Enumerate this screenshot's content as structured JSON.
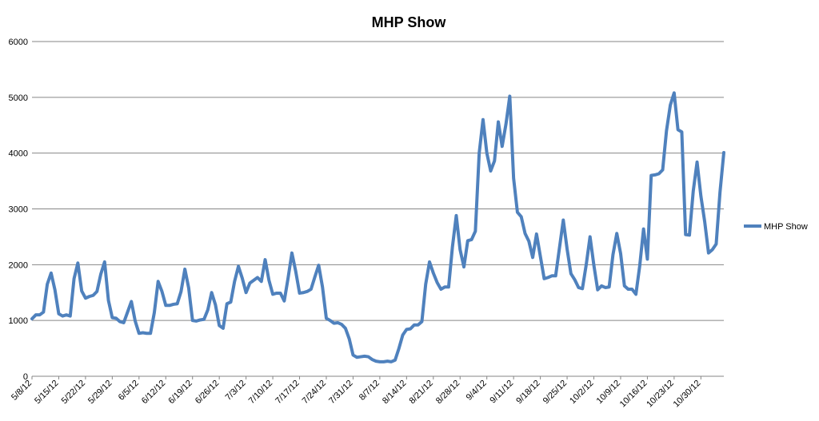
{
  "chart_data": {
    "type": "line",
    "title": "MHP Show",
    "xlabel": "",
    "ylabel": "",
    "ylim": [
      0,
      6000
    ],
    "yticks": [
      0,
      1000,
      2000,
      3000,
      4000,
      5000,
      6000
    ],
    "grid": true,
    "legend_position": "right",
    "xtick_labels": [
      "5/8/12",
      "5/15/12",
      "5/22/12",
      "5/29/12",
      "6/5/12",
      "6/12/12",
      "6/19/12",
      "6/26/12",
      "7/3/12",
      "7/10/12",
      "7/17/12",
      "7/24/12",
      "7/31/12",
      "8/7/12",
      "8/14/12",
      "8/21/12",
      "8/28/12",
      "9/4/12",
      "9/11/12",
      "9/18/12",
      "9/25/12",
      "10/2/12",
      "10/9/12",
      "10/16/12",
      "10/23/12",
      "10/30/12"
    ],
    "xtick_step": 7,
    "series": [
      {
        "name": "MHP Show",
        "color": "#4F81BD",
        "values": [
          1030,
          1100,
          1100,
          1150,
          1650,
          1850,
          1550,
          1120,
          1080,
          1100,
          1080,
          1750,
          2030,
          1530,
          1400,
          1430,
          1450,
          1520,
          1830,
          2050,
          1360,
          1050,
          1040,
          980,
          960,
          1150,
          1340,
          990,
          770,
          780,
          770,
          770,
          1140,
          1700,
          1520,
          1270,
          1270,
          1290,
          1300,
          1520,
          1920,
          1580,
          1000,
          990,
          1010,
          1020,
          1190,
          1500,
          1280,
          910,
          860,
          1300,
          1330,
          1700,
          1970,
          1760,
          1500,
          1670,
          1720,
          1770,
          1700,
          2090,
          1720,
          1470,
          1490,
          1490,
          1350,
          1760,
          2210,
          1880,
          1490,
          1500,
          1520,
          1560,
          1780,
          1990,
          1600,
          1040,
          1000,
          950,
          960,
          930,
          860,
          670,
          380,
          340,
          350,
          360,
          350,
          300,
          270,
          260,
          260,
          270,
          260,
          290,
          500,
          740,
          840,
          850,
          920,
          920,
          980,
          1650,
          2050,
          1850,
          1680,
          1560,
          1600,
          1600,
          2320,
          2880,
          2270,
          1960,
          2430,
          2450,
          2600,
          4000,
          4600,
          4000,
          3680,
          3860,
          4560,
          4120,
          4520,
          5020,
          3550,
          2940,
          2860,
          2560,
          2420,
          2130,
          2550,
          2150,
          1750,
          1770,
          1800,
          1800,
          2300,
          2800,
          2280,
          1840,
          1730,
          1590,
          1570,
          2000,
          2500,
          1990,
          1550,
          1620,
          1590,
          1600,
          2180,
          2560,
          2200,
          1620,
          1560,
          1560,
          1470,
          1980,
          2640,
          2100,
          3600,
          3610,
          3630,
          3700,
          4400,
          4860,
          5080,
          4420,
          4380,
          2540,
          2530,
          3320,
          3840,
          3230,
          2770,
          2210,
          2270,
          2370,
          3300,
          4010
        ]
      }
    ]
  }
}
